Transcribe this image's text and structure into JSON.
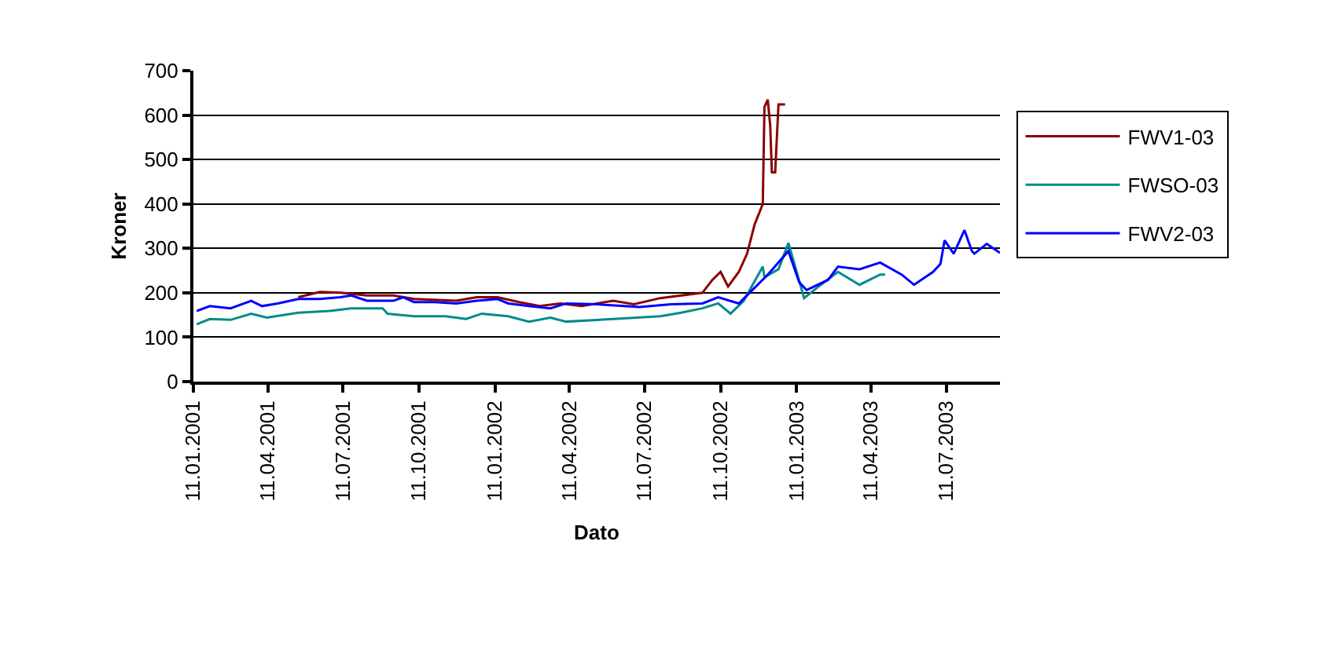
{
  "chart_data": {
    "type": "line",
    "xlabel": "Dato",
    "ylabel": "Kroner",
    "xlim": [
      "2001-01-11",
      "2003-09-14"
    ],
    "xticks": [
      {
        "value": "2001-01-11",
        "label": "11.01.2001"
      },
      {
        "value": "2001-04-11",
        "label": "11.04.2001"
      },
      {
        "value": "2001-07-11",
        "label": "11.07.2001"
      },
      {
        "value": "2001-10-11",
        "label": "11.10.2001"
      },
      {
        "value": "2002-01-11",
        "label": "11.01.2002"
      },
      {
        "value": "2002-04-11",
        "label": "11.04.2002"
      },
      {
        "value": "2002-07-11",
        "label": "11.07.2002"
      },
      {
        "value": "2002-10-11",
        "label": "11.10.2002"
      },
      {
        "value": "2003-01-11",
        "label": "11.01.2003"
      },
      {
        "value": "2003-04-11",
        "label": "11.04.2003"
      },
      {
        "value": "2003-07-11",
        "label": "11.07.2003"
      }
    ],
    "ylim": [
      0,
      700
    ],
    "yticks": [
      0,
      100,
      200,
      300,
      400,
      500,
      600,
      700
    ],
    "grid": "y",
    "legend": "right",
    "marker": "none",
    "line_style": "solid",
    "series": [
      {
        "name": "FWV1-03",
        "color": "#8b0000",
        "x": [
          "2001-05-18",
          "2001-06-13",
          "2001-07-08",
          "2001-08-09",
          "2001-09-10",
          "2001-10-05",
          "2001-11-25",
          "2001-12-20",
          "2002-01-14",
          "2002-02-09",
          "2002-03-06",
          "2002-03-31",
          "2002-04-26",
          "2002-06-03",
          "2002-06-28",
          "2002-07-30",
          "2002-09-19",
          "2002-10-01",
          "2002-10-11",
          "2002-10-20",
          "2002-11-02",
          "2002-11-12",
          "2002-11-21",
          "2002-12-01",
          "2002-12-03",
          "2002-12-07",
          "2002-12-10",
          "2002-12-12",
          "2002-12-16",
          "2002-12-20",
          "2002-12-28"
        ],
        "values": [
          190,
          202,
          200,
          194,
          194,
          186,
          182,
          190,
          190,
          179,
          170,
          176,
          170,
          182,
          174,
          188,
          200,
          229,
          247,
          214,
          247,
          288,
          353,
          400,
          618,
          635,
          576,
          471,
          471,
          624,
          624
        ]
      },
      {
        "name": "FWSO-03",
        "color": "#008b8b",
        "x": [
          "2001-01-15",
          "2001-01-31",
          "2001-02-25",
          "2001-03-22",
          "2001-04-10",
          "2001-05-18",
          "2001-06-25",
          "2001-07-21",
          "2001-08-28",
          "2001-09-03",
          "2001-10-05",
          "2001-11-12",
          "2001-12-07",
          "2001-12-26",
          "2002-01-27",
          "2002-02-21",
          "2002-03-19",
          "2002-04-07",
          "2002-06-03",
          "2002-07-30",
          "2002-08-24",
          "2002-09-19",
          "2002-10-08",
          "2002-10-23",
          "2002-11-08",
          "2002-12-01",
          "2002-12-03",
          "2002-12-20",
          "2003-01-01",
          "2003-01-11",
          "2003-01-20",
          "2003-02-05",
          "2003-03-02",
          "2003-03-28",
          "2003-04-22",
          "2003-04-28"
        ],
        "values": [
          129,
          141,
          139,
          153,
          144,
          155,
          159,
          165,
          165,
          153,
          147,
          147,
          141,
          153,
          147,
          135,
          144,
          135,
          141,
          147,
          155,
          165,
          176,
          153,
          182,
          259,
          235,
          253,
          312,
          247,
          188,
          212,
          247,
          218,
          241,
          241
        ]
      },
      {
        "name": "FWV2-03",
        "color": "#0000ff",
        "x": [
          "2001-01-15",
          "2001-01-31",
          "2001-02-25",
          "2001-03-22",
          "2001-04-04",
          "2001-04-23",
          "2001-05-18",
          "2001-06-13",
          "2001-07-08",
          "2001-07-21",
          "2001-08-09",
          "2001-09-10",
          "2001-09-22",
          "2001-10-05",
          "2001-10-30",
          "2001-11-25",
          "2001-12-20",
          "2002-01-14",
          "2002-01-27",
          "2002-02-21",
          "2002-03-19",
          "2002-04-07",
          "2002-05-15",
          "2002-07-05",
          "2002-08-12",
          "2002-09-19",
          "2002-10-08",
          "2002-11-02",
          "2002-11-15",
          "2002-12-04",
          "2002-12-10",
          "2003-01-01",
          "2003-01-14",
          "2003-01-23",
          "2003-02-18",
          "2003-03-02",
          "2003-03-28",
          "2003-04-22",
          "2003-05-18",
          "2003-06-02",
          "2003-06-25",
          "2003-07-04",
          "2003-07-09",
          "2003-07-20",
          "2003-08-02",
          "2003-08-11",
          "2003-08-14",
          "2003-08-29",
          "2003-09-14"
        ],
        "values": [
          159,
          170,
          165,
          182,
          170,
          176,
          186,
          186,
          190,
          194,
          182,
          182,
          190,
          179,
          179,
          176,
          182,
          186,
          176,
          170,
          165,
          176,
          174,
          168,
          174,
          176,
          190,
          176,
          200,
          235,
          247,
          294,
          224,
          206,
          229,
          259,
          253,
          268,
          241,
          218,
          247,
          265,
          318,
          288,
          341,
          294,
          288,
          310,
          290
        ]
      }
    ]
  }
}
